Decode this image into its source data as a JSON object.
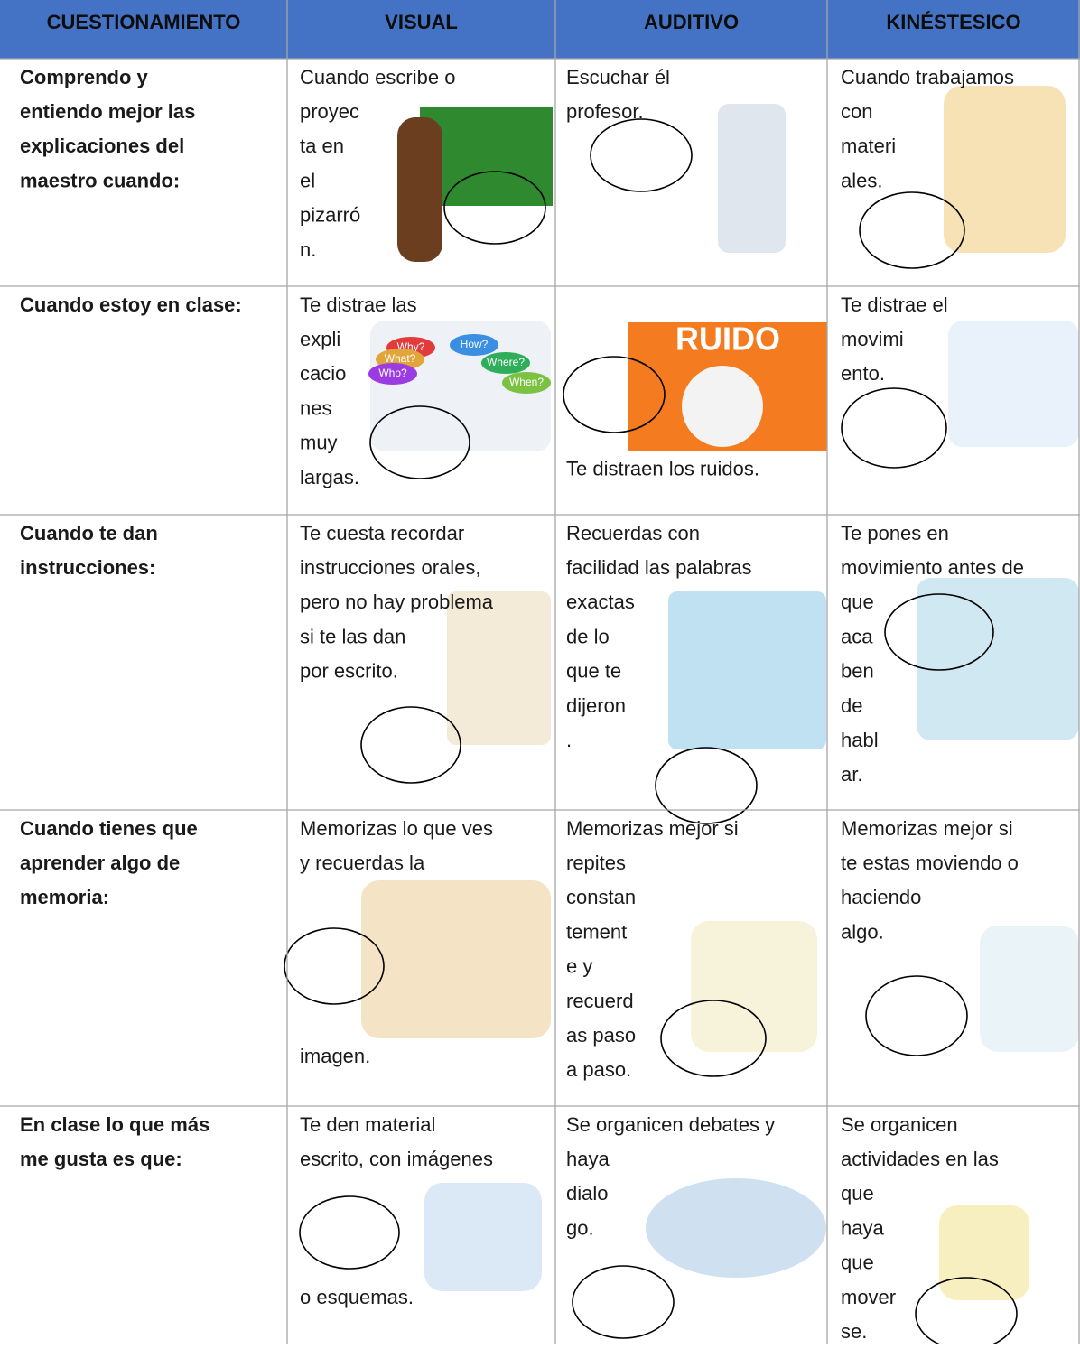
{
  "table": {
    "header": [
      "CUESTIONAMIENTO",
      "VISUAL",
      "AUDITIVO",
      "KINÉSTESICO"
    ],
    "rows": [
      [
        {
          "lines": [
            "Comprendo y",
            "entiendo mejor las",
            "explicaciones del",
            "maestro cuando:"
          ]
        },
        {
          "lines": [
            "Cuando escribe o",
            "proyec",
            "ta en",
            "el",
            "pizarró",
            "n."
          ]
        },
        {
          "lines": [
            "Escuchar él",
            "profesor."
          ]
        },
        {
          "lines": [
            "Cuando trabajamos",
            "con",
            "materi",
            "ales."
          ]
        }
      ],
      [
        {
          "lines": [
            "Cuando estoy en clase:"
          ]
        },
        {
          "lines": [
            "Te distrae las",
            "expli",
            "cacio",
            "nes",
            "muy",
            "largas."
          ],
          "image_text": [
            "Why?",
            "How?",
            "What?",
            "Where?",
            "Who?",
            "When?"
          ]
        },
        {
          "lines": [
            "Te distraen los ruidos."
          ],
          "image_text": [
            "RUIDO"
          ]
        },
        {
          "lines": [
            "Te distrae el",
            "movimi",
            "ento."
          ]
        }
      ],
      [
        {
          "lines": [
            "Cuando te dan",
            "instrucciones:"
          ]
        },
        {
          "lines": [
            "Te cuesta recordar",
            "instrucciones orales,",
            "pero no hay problema",
            "si te las dan",
            "por escrito."
          ]
        },
        {
          "lines": [
            "Recuerdas con",
            "facilidad las palabras",
            "exactas",
            "de lo",
            "que te",
            "dijeron",
            "."
          ]
        },
        {
          "lines": [
            "Te pones en",
            "movimiento antes de",
            "que",
            "aca",
            "ben",
            "de",
            "habl",
            "ar."
          ]
        }
      ],
      [
        {
          "lines": [
            "Cuando tienes que",
            "aprender algo de",
            "memoria:"
          ]
        },
        {
          "lines": [
            "Memorizas lo que ves",
            "y recuerdas la",
            "imagen."
          ]
        },
        {
          "lines": [
            "Memorizas mejor si",
            "repites",
            "constan",
            "tement",
            "e y",
            "recuerd",
            "as paso",
            "a paso."
          ]
        },
        {
          "lines": [
            "Memorizas mejor si",
            "te estas moviendo o",
            "haciendo",
            "algo."
          ]
        }
      ],
      [
        {
          "lines": [
            "En clase lo que más",
            "me gusta es que:"
          ]
        },
        {
          "lines": [
            "Te den material",
            "escrito, con imágenes",
            "o esquemas."
          ]
        },
        {
          "lines": [
            "Se organicen debates y",
            "haya",
            "dialo",
            "go."
          ]
        },
        {
          "lines": [
            "Se organicen",
            "actividades en las",
            "que",
            "haya",
            "que",
            "mover",
            "se."
          ]
        }
      ]
    ]
  }
}
